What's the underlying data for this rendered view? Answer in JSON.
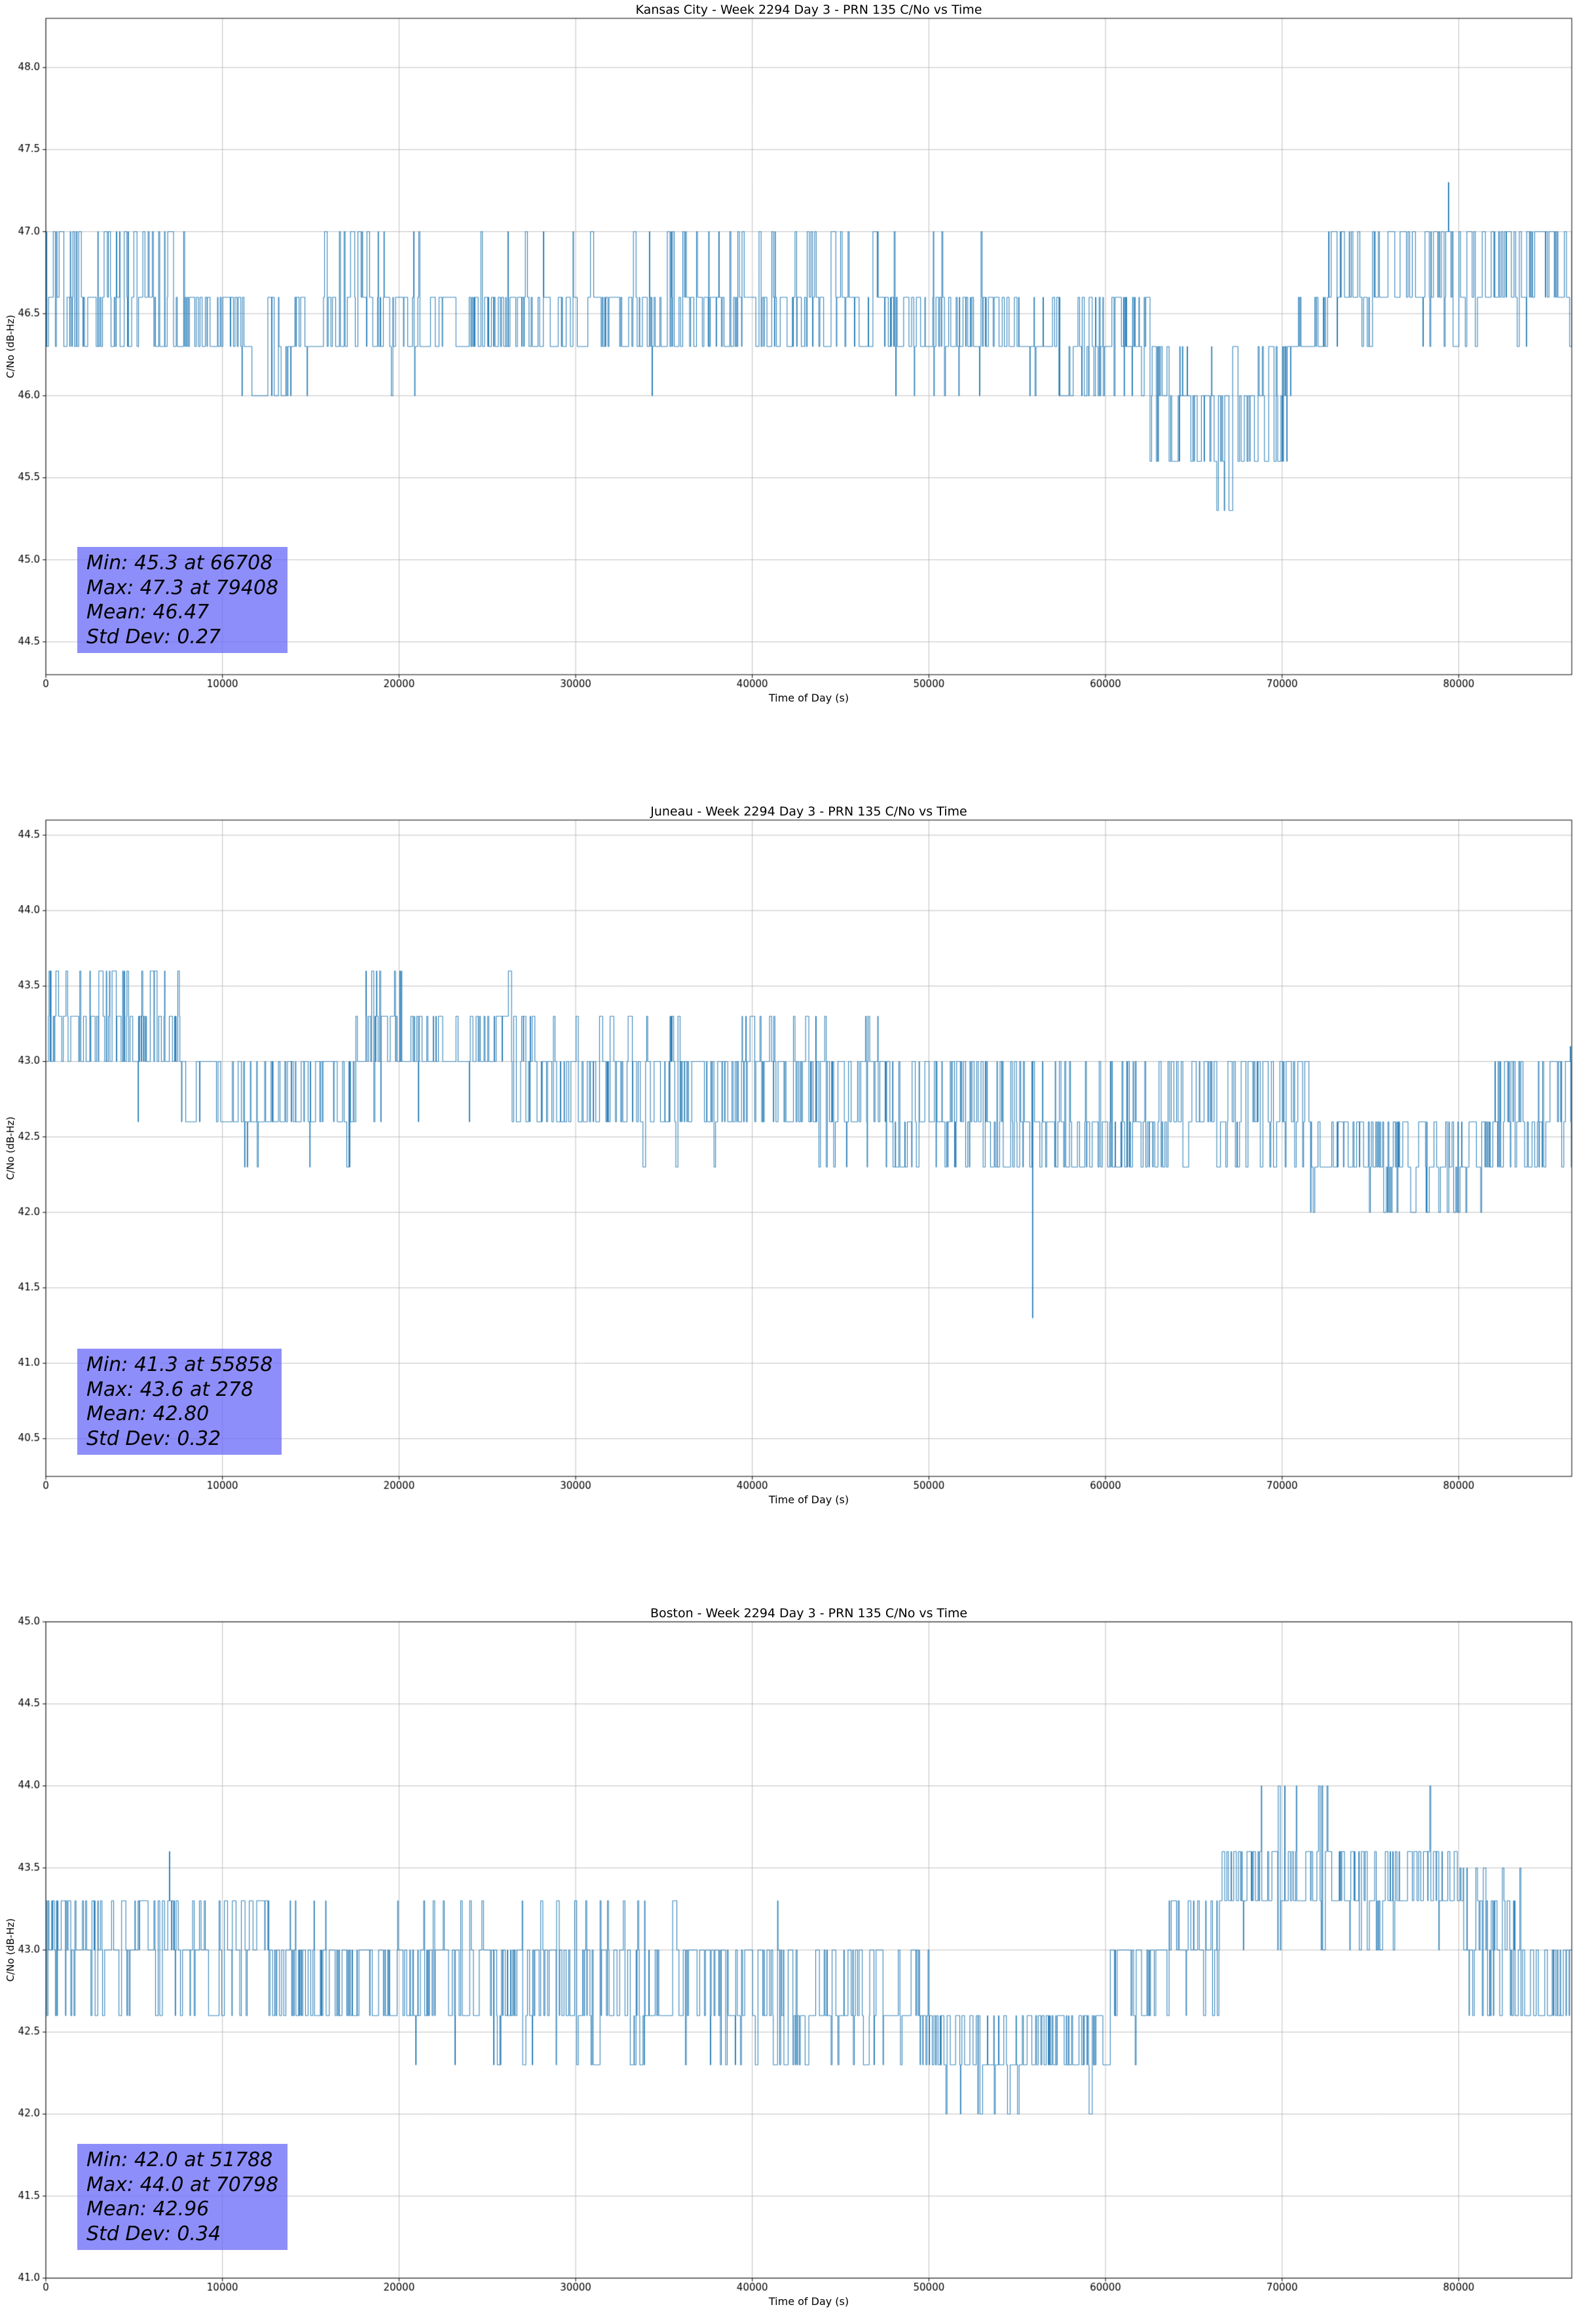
{
  "page": {
    "background": "#ffffff"
  },
  "chart_data": [
    {
      "type": "line",
      "title": "Kansas City - Week 2294 Day 3 - PRN 135 C/No vs Time",
      "xlabel": "Time of Day (s)",
      "ylabel": "C/No (dB-Hz)",
      "xlim": [
        0,
        86400
      ],
      "ylim": [
        44.3,
        48.3
      ],
      "xticks": [
        0,
        10000,
        20000,
        30000,
        40000,
        50000,
        60000,
        70000,
        80000
      ],
      "yticks": [
        44.5,
        45.0,
        45.5,
        46.0,
        46.5,
        47.0,
        47.5,
        48.0
      ],
      "line_color": "#1f77b4",
      "grid": true,
      "annotation": {
        "lines": [
          "Min: 45.3 at 66708",
          "Max: 47.3 at 79408",
          "Mean: 46.47",
          "Std Dev: 0.27"
        ],
        "bg_color": "#6e6ef8"
      },
      "stats": {
        "min": 45.3,
        "min_t": 66708,
        "max": 47.3,
        "max_t": 79408,
        "mean": 46.47,
        "std": 0.27
      },
      "series": {
        "sample_step_s": 30,
        "segments": [
          {
            "t": [
              0,
              7800
            ],
            "levels": [
              [
                46.3,
                3
              ],
              [
                46.6,
                4
              ],
              [
                47.0,
                3
              ]
            ]
          },
          {
            "t": [
              7800,
              11000
            ],
            "levels": [
              [
                46.3,
                5
              ],
              [
                46.6,
                4
              ],
              [
                47.0,
                0.6
              ]
            ]
          },
          {
            "t": [
              11000,
              15500
            ],
            "levels": [
              [
                46.0,
                3
              ],
              [
                46.3,
                4
              ],
              [
                46.6,
                2
              ]
            ]
          },
          {
            "t": [
              15500,
              19000
            ],
            "levels": [
              [
                46.3,
                4
              ],
              [
                46.6,
                3
              ],
              [
                47.0,
                1.2
              ]
            ]
          },
          {
            "t": [
              19000,
              28000
            ],
            "levels": [
              [
                46.0,
                0.3
              ],
              [
                46.3,
                5
              ],
              [
                46.6,
                4
              ],
              [
                47.0,
                0.5
              ]
            ]
          },
          {
            "t": [
              28000,
              36000
            ],
            "levels": [
              [
                46.0,
                0.4
              ],
              [
                46.3,
                4.5
              ],
              [
                46.6,
                4
              ],
              [
                47.0,
                1.0
              ]
            ]
          },
          {
            "t": [
              36000,
              48000
            ],
            "levels": [
              [
                46.3,
                4
              ],
              [
                46.6,
                4
              ],
              [
                47.0,
                1.8
              ]
            ]
          },
          {
            "t": [
              48000,
              56500
            ],
            "levels": [
              [
                46.0,
                0.8
              ],
              [
                46.3,
                5
              ],
              [
                46.6,
                3.5
              ],
              [
                47.0,
                0.4
              ]
            ]
          },
          {
            "t": [
              56500,
              62500
            ],
            "levels": [
              [
                46.0,
                2
              ],
              [
                46.3,
                4
              ],
              [
                46.6,
                2
              ]
            ]
          },
          {
            "t": [
              62500,
              64500
            ],
            "levels": [
              [
                45.6,
                1
              ],
              [
                46.0,
                3
              ],
              [
                46.3,
                3
              ]
            ]
          },
          {
            "t": [
              64500,
              68800
            ],
            "levels": [
              [
                45.3,
                0.15
              ],
              [
                45.6,
                3
              ],
              [
                46.0,
                3.5
              ],
              [
                46.3,
                0.5
              ]
            ]
          },
          {
            "t": [
              68800,
              70500
            ],
            "levels": [
              [
                45.6,
                1
              ],
              [
                46.0,
                2
              ],
              [
                46.3,
                2.5
              ]
            ]
          },
          {
            "t": [
              70500,
              72500
            ],
            "levels": [
              [
                46.3,
                4
              ],
              [
                46.6,
                3
              ]
            ]
          },
          {
            "t": [
              72500,
              86401
            ],
            "levels": [
              [
                46.3,
                0.7
              ],
              [
                46.6,
                4
              ],
              [
                47.0,
                3.5
              ]
            ]
          }
        ],
        "spikes": [
          {
            "t": 66708,
            "y": 45.3
          },
          {
            "t": 79408,
            "y": 47.3
          }
        ]
      }
    },
    {
      "type": "line",
      "title": "Juneau - Week 2294 Day 3 - PRN 135 C/No vs Time",
      "xlabel": "Time of Day (s)",
      "ylabel": "C/No (dB-Hz)",
      "xlim": [
        0,
        86400
      ],
      "ylim": [
        40.25,
        44.6
      ],
      "xticks": [
        0,
        10000,
        20000,
        30000,
        40000,
        50000,
        60000,
        70000,
        80000
      ],
      "yticks": [
        40.5,
        41.0,
        41.5,
        42.0,
        42.5,
        43.0,
        43.5,
        44.0,
        44.5
      ],
      "line_color": "#1f77b4",
      "grid": true,
      "annotation": {
        "lines": [
          "Min: 41.3 at 55858",
          "Max: 43.6 at 278",
          "Mean: 42.80",
          "Std Dev: 0.32"
        ],
        "bg_color": "#6e6ef8"
      },
      "stats": {
        "min": 41.3,
        "min_t": 55858,
        "max": 43.6,
        "max_t": 278,
        "mean": 42.8,
        "std": 0.32
      },
      "series": {
        "sample_step_s": 30,
        "segments": [
          {
            "t": [
              0,
              7600
            ],
            "levels": [
              [
                42.6,
                0.3
              ],
              [
                43.0,
                4
              ],
              [
                43.3,
                3.5
              ],
              [
                43.6,
                1.5
              ]
            ]
          },
          {
            "t": [
              7600,
              9500
            ],
            "levels": [
              [
                42.6,
                3
              ],
              [
                43.0,
                3
              ],
              [
                43.3,
                0.5
              ]
            ]
          },
          {
            "t": [
              9500,
              17500
            ],
            "levels": [
              [
                42.3,
                0.5
              ],
              [
                42.6,
                4
              ],
              [
                43.0,
                3
              ]
            ]
          },
          {
            "t": [
              17500,
              26500
            ],
            "levels": [
              [
                42.6,
                0.8
              ],
              [
                43.0,
                5
              ],
              [
                43.3,
                3
              ],
              [
                43.6,
                0.8
              ]
            ]
          },
          {
            "t": [
              26500,
              33500
            ],
            "levels": [
              [
                42.6,
                3.5
              ],
              [
                43.0,
                4
              ],
              [
                43.3,
                1.2
              ]
            ]
          },
          {
            "t": [
              33500,
              47500
            ],
            "levels": [
              [
                42.3,
                0.3
              ],
              [
                42.6,
                3
              ],
              [
                43.0,
                4
              ],
              [
                43.3,
                1
              ]
            ]
          },
          {
            "t": [
              47500,
              56500
            ],
            "levels": [
              [
                42.3,
                2
              ],
              [
                42.6,
                3.5
              ],
              [
                43.0,
                2.5
              ]
            ]
          },
          {
            "t": [
              56500,
              63500
            ],
            "levels": [
              [
                42.3,
                2.5
              ],
              [
                42.6,
                3.5
              ],
              [
                43.0,
                2
              ]
            ]
          },
          {
            "t": [
              63500,
              71500
            ],
            "levels": [
              [
                42.3,
                1.5
              ],
              [
                42.6,
                3.5
              ],
              [
                43.0,
                2.5
              ]
            ]
          },
          {
            "t": [
              71500,
              75500
            ],
            "levels": [
              [
                42.0,
                0.8
              ],
              [
                42.3,
                3
              ],
              [
                42.6,
                3
              ]
            ]
          },
          {
            "t": [
              75500,
              82000
            ],
            "levels": [
              [
                42.0,
                2
              ],
              [
                42.3,
                3.5
              ],
              [
                42.6,
                2.5
              ]
            ]
          },
          {
            "t": [
              82000,
              86401
            ],
            "levels": [
              [
                42.3,
                2
              ],
              [
                42.6,
                3
              ],
              [
                43.0,
                2.5
              ]
            ]
          }
        ],
        "spikes": [
          {
            "t": 278,
            "y": 43.6
          },
          {
            "t": 55858,
            "y": 41.3
          },
          {
            "t": 86310,
            "y": 43.1
          }
        ]
      }
    },
    {
      "type": "line",
      "title": "Boston - Week 2294 Day 3 - PRN 135 C/No vs Time",
      "xlabel": "Time of Day (s)",
      "ylabel": "C/No (dB-Hz)",
      "xlim": [
        0,
        86400
      ],
      "ylim": [
        41.0,
        45.0
      ],
      "xticks": [
        0,
        10000,
        20000,
        30000,
        40000,
        50000,
        60000,
        70000,
        80000
      ],
      "yticks": [
        41.0,
        41.5,
        42.0,
        42.5,
        43.0,
        43.5,
        44.0,
        44.5,
        45.0
      ],
      "line_color": "#1f77b4",
      "grid": true,
      "annotation": {
        "lines": [
          "Min: 42.0 at 51788",
          "Max: 44.0 at 70798",
          "Mean: 42.96",
          "Std Dev: 0.34"
        ],
        "bg_color": "#6e6ef8"
      },
      "stats": {
        "min": 42.0,
        "min_t": 51788,
        "max": 44.0,
        "max_t": 70798,
        "mean": 42.96,
        "std": 0.34
      },
      "series": {
        "sample_step_s": 30,
        "segments": [
          {
            "t": [
              0,
              1800
            ],
            "levels": [
              [
                42.6,
                3
              ],
              [
                43.0,
                3
              ],
              [
                43.3,
                2
              ]
            ]
          },
          {
            "t": [
              1800,
              12200
            ],
            "levels": [
              [
                42.6,
                1.2
              ],
              [
                43.0,
                5
              ],
              [
                43.3,
                3.5
              ]
            ]
          },
          {
            "t": [
              12200,
              17500
            ],
            "levels": [
              [
                42.6,
                3.5
              ],
              [
                43.0,
                4
              ],
              [
                43.3,
                0.8
              ]
            ]
          },
          {
            "t": [
              17500,
              25500
            ],
            "levels": [
              [
                42.3,
                0.2
              ],
              [
                42.6,
                3
              ],
              [
                43.0,
                4
              ],
              [
                43.3,
                0.4
              ]
            ]
          },
          {
            "t": [
              25500,
              42000
            ],
            "levels": [
              [
                42.3,
                0.7
              ],
              [
                42.6,
                3.5
              ],
              [
                43.0,
                4
              ],
              [
                43.3,
                0.6
              ]
            ]
          },
          {
            "t": [
              42000,
              50000
            ],
            "levels": [
              [
                42.3,
                1
              ],
              [
                42.6,
                4
              ],
              [
                43.0,
                2.5
              ]
            ]
          },
          {
            "t": [
              50000,
              56500
            ],
            "levels": [
              [
                42.0,
                1.2
              ],
              [
                42.3,
                3.5
              ],
              [
                42.6,
                3
              ]
            ]
          },
          {
            "t": [
              56500,
              60000
            ],
            "levels": [
              [
                42.0,
                0.3
              ],
              [
                42.3,
                3
              ],
              [
                42.6,
                3.5
              ]
            ]
          },
          {
            "t": [
              60000,
              63500
            ],
            "levels": [
              [
                42.3,
                0.4
              ],
              [
                42.6,
                3
              ],
              [
                43.0,
                3.5
              ]
            ]
          },
          {
            "t": [
              63500,
              66500
            ],
            "levels": [
              [
                42.6,
                0.4
              ],
              [
                43.0,
                3
              ],
              [
                43.3,
                3.5
              ]
            ]
          },
          {
            "t": [
              66500,
              80000
            ],
            "levels": [
              [
                42.3,
                0.05
              ],
              [
                43.0,
                0.6
              ],
              [
                43.3,
                4
              ],
              [
                43.6,
                3.5
              ],
              [
                44.0,
                0.5
              ]
            ]
          },
          {
            "t": [
              80000,
              83500
            ],
            "levels": [
              [
                42.6,
                1.5
              ],
              [
                43.0,
                3
              ],
              [
                43.3,
                2.5
              ],
              [
                43.5,
                1
              ]
            ]
          },
          {
            "t": [
              83500,
              86401
            ],
            "levels": [
              [
                42.6,
                3.5
              ],
              [
                43.0,
                3
              ]
            ]
          }
        ],
        "spikes": [
          {
            "t": 7000,
            "y": 43.6
          },
          {
            "t": 51788,
            "y": 42.0
          },
          {
            "t": 70798,
            "y": 44.0
          }
        ]
      }
    }
  ]
}
